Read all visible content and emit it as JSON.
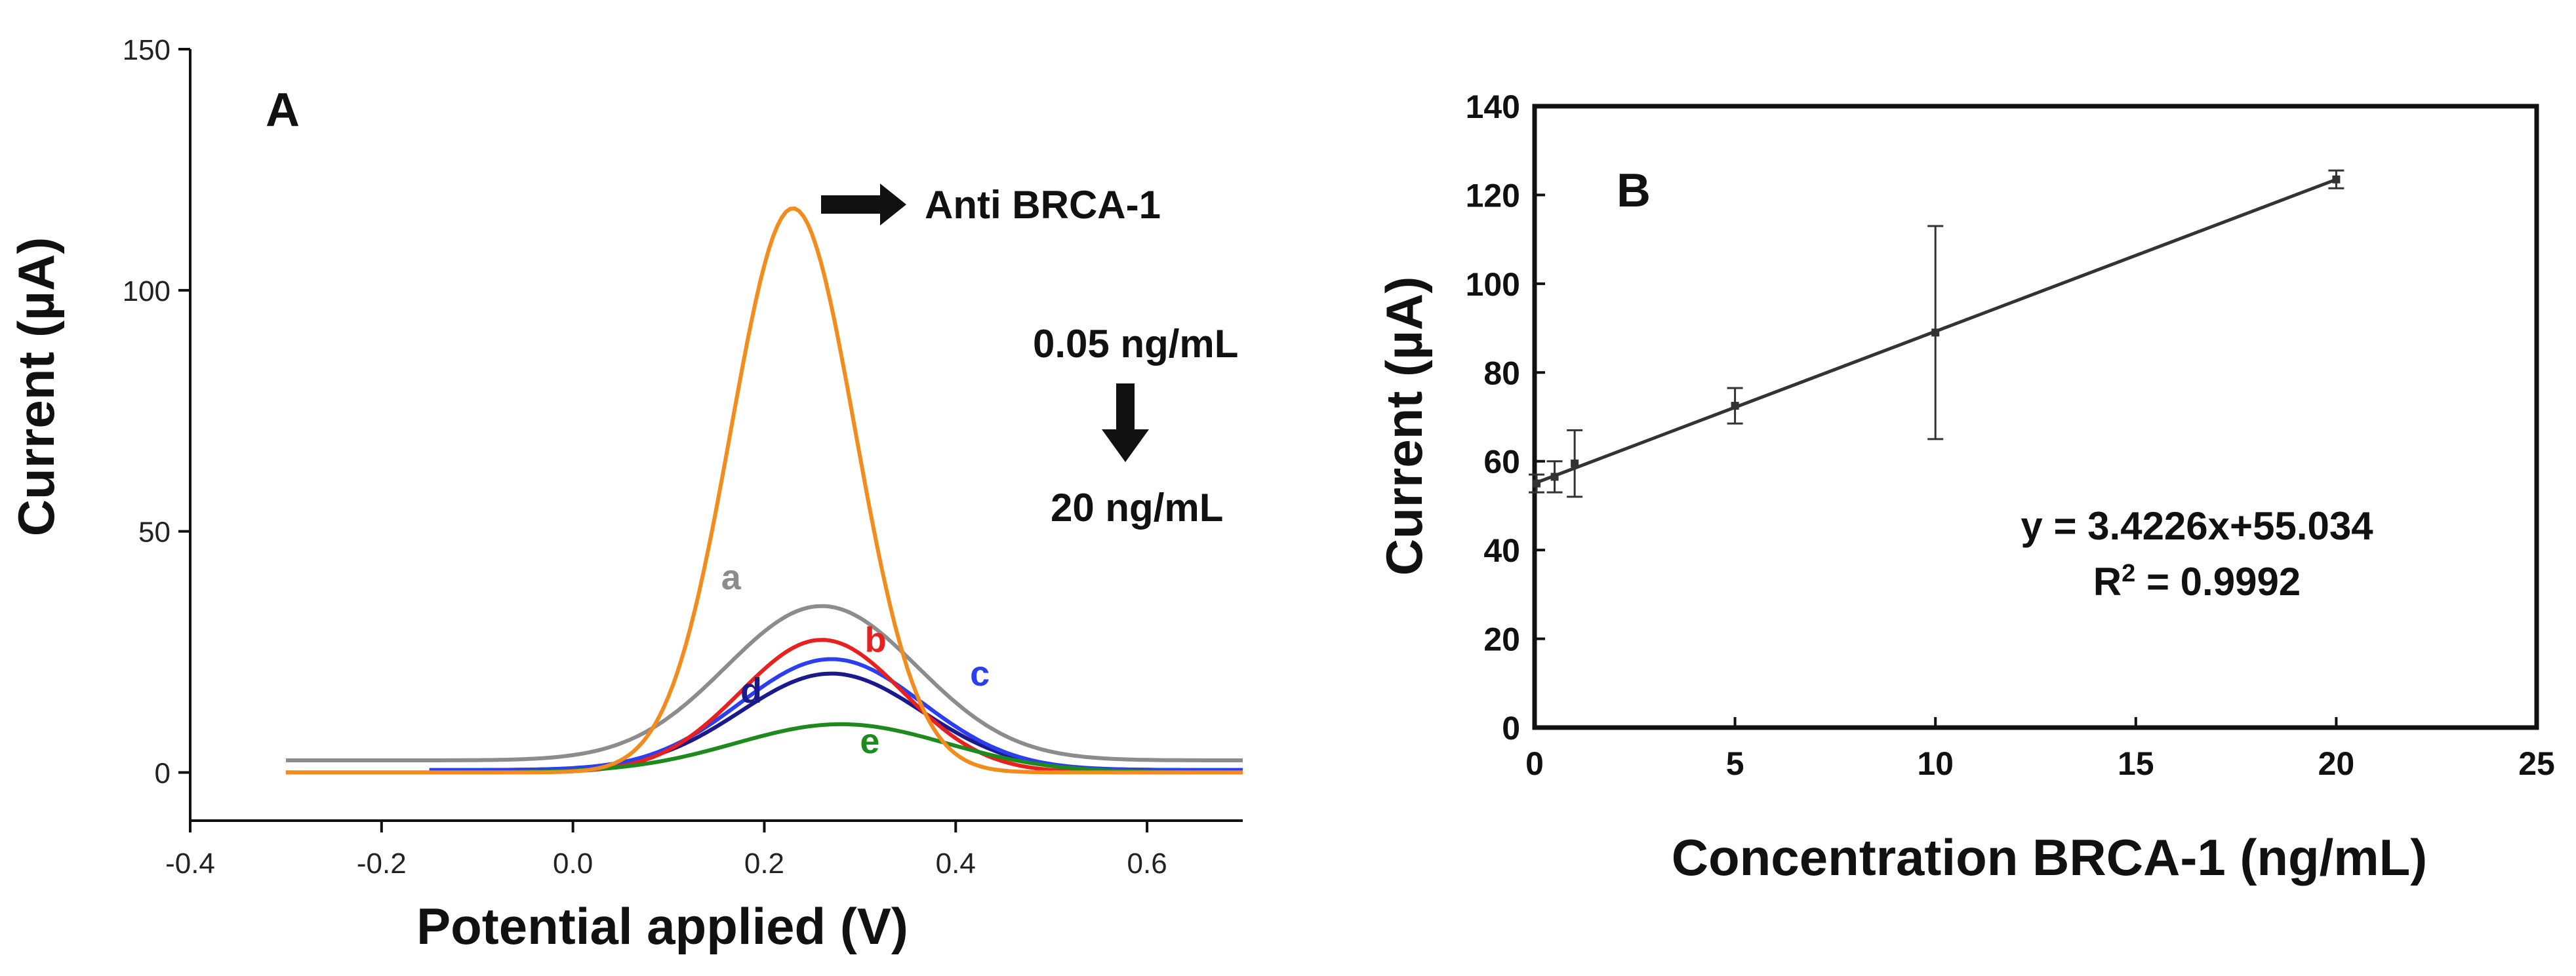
{
  "chart_data": [
    {
      "type": "line",
      "panel": "A",
      "xlabel": "Potential applied (V)",
      "ylabel": "Current (µA)",
      "xlim": [
        -0.4,
        0.7
      ],
      "ylim": [
        -10,
        150
      ],
      "xticks": [
        -0.4,
        -0.2,
        0.0,
        0.2,
        0.4,
        0.6
      ],
      "xtick_labels": [
        "-0.4",
        "-0.2",
        "0.0",
        "0.2",
        "0.4",
        "0.6"
      ],
      "yticks": [
        0,
        50,
        100,
        150
      ],
      "ytick_labels": [
        "0",
        "50",
        "100",
        "150"
      ],
      "grid": false,
      "series": [
        {
          "name": "Anti BRCA-1",
          "color": "#f28c1c",
          "baseline": 0,
          "peak": 117,
          "center": 0.23,
          "sigma": 0.065,
          "x_start": -0.3,
          "x_end": 0.7,
          "label": ""
        },
        {
          "name": "a",
          "color": "#8c8c8c",
          "baseline": 2.5,
          "peak": 32,
          "center": 0.26,
          "sigma": 0.1,
          "x_start": -0.3,
          "x_end": 0.7,
          "label": "a"
        },
        {
          "name": "b",
          "color": "#e8211f",
          "baseline": 0,
          "peak": 27.5,
          "center": 0.26,
          "sigma": 0.085,
          "x_start": -0.3,
          "x_end": 0.7,
          "label": "b"
        },
        {
          "name": "c",
          "color": "#2b3ef0",
          "baseline": 0.5,
          "peak": 23,
          "center": 0.27,
          "sigma": 0.095,
          "x_start": -0.15,
          "x_end": 0.7,
          "label": "c"
        },
        {
          "name": "d",
          "color": "#1b1a8c",
          "baseline": 0.5,
          "peak": 20,
          "center": 0.27,
          "sigma": 0.095,
          "x_start": -0.15,
          "x_end": 0.7,
          "label": "d"
        },
        {
          "name": "e",
          "color": "#1e8a1e",
          "baseline": 0,
          "peak": 10,
          "center": 0.28,
          "sigma": 0.11,
          "x_start": -0.15,
          "x_end": 0.7,
          "label": "e"
        }
      ],
      "annotations": {
        "panel_label": "A",
        "arrow_label": "Anti BRCA-1",
        "conc_high": "0.05 ng/mL",
        "conc_low": "20 ng/mL"
      }
    },
    {
      "type": "scatter",
      "panel": "B",
      "xlabel": "Concentration BRCA-1 (ng/mL)",
      "ylabel": "Current (µA)",
      "xlim": [
        0,
        25
      ],
      "ylim": [
        0,
        140
      ],
      "xticks": [
        0,
        5,
        10,
        15,
        20,
        25
      ],
      "yticks": [
        0,
        20,
        40,
        60,
        80,
        100,
        120,
        140
      ],
      "grid": false,
      "points": [
        {
          "x": 0.05,
          "y": 55,
          "err": 2
        },
        {
          "x": 0.5,
          "y": 56.5,
          "err": 3.5
        },
        {
          "x": 1,
          "y": 59.5,
          "err": 7.5
        },
        {
          "x": 5,
          "y": 72.5,
          "err": 4
        },
        {
          "x": 10,
          "y": 89,
          "err": 24
        },
        {
          "x": 20,
          "y": 123.5,
          "err": 2
        }
      ],
      "fit": {
        "slope": 3.4226,
        "intercept": 55.034,
        "x_range": [
          0,
          20
        ]
      },
      "annotations": {
        "panel_label": "B",
        "equation": "y = 3.4226x+55.034",
        "r2_prefix": "R",
        "r2_sup": "2",
        "r2_value": " = 0.9992"
      }
    }
  ]
}
